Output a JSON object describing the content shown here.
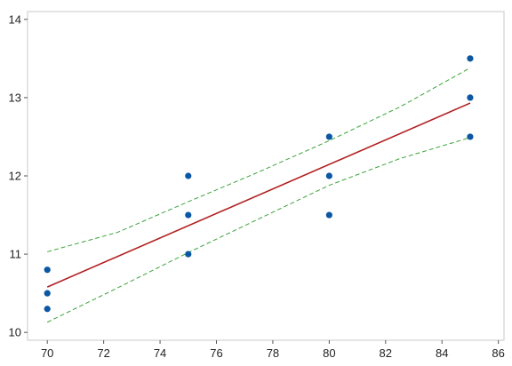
{
  "chart_data": {
    "type": "scatter",
    "title": "",
    "xlabel": "",
    "ylabel": "",
    "xlim": [
      69.3,
      86.2
    ],
    "ylim": [
      9.9,
      14.1
    ],
    "x_ticks": [
      70,
      72,
      74,
      76,
      78,
      80,
      82,
      84,
      86
    ],
    "y_ticks": [
      10,
      11,
      12,
      13,
      14
    ],
    "grid": false,
    "legend": "none",
    "series": [
      {
        "type": "scatter",
        "color": "#0b57a4",
        "points": [
          [
            70,
            10.8
          ],
          [
            70,
            10.5
          ],
          [
            70,
            10.3
          ],
          [
            75,
            12.0
          ],
          [
            75,
            11.5
          ],
          [
            75,
            11.0
          ],
          [
            80,
            12.5
          ],
          [
            80,
            12.0
          ],
          [
            80,
            11.5
          ],
          [
            85,
            13.5
          ],
          [
            85,
            13.0
          ],
          [
            85,
            12.5
          ]
        ]
      },
      {
        "type": "line",
        "color": "#b22222",
        "style": "solid",
        "points": [
          [
            70,
            10.58
          ],
          [
            85,
            12.93
          ]
        ]
      },
      {
        "type": "line",
        "color": "#3aa33a",
        "style": "dashed",
        "points": [
          [
            70,
            11.03
          ],
          [
            72.5,
            11.28
          ],
          [
            75,
            11.67
          ],
          [
            77.5,
            12.05
          ],
          [
            80,
            12.45
          ],
          [
            82.5,
            12.88
          ],
          [
            85,
            13.38
          ]
        ]
      },
      {
        "type": "line",
        "color": "#3aa33a",
        "style": "dashed",
        "points": [
          [
            70,
            10.13
          ],
          [
            72.5,
            10.57
          ],
          [
            75,
            11.02
          ],
          [
            77.5,
            11.45
          ],
          [
            80,
            11.88
          ],
          [
            82.5,
            12.22
          ],
          [
            85,
            12.49
          ]
        ]
      }
    ]
  }
}
